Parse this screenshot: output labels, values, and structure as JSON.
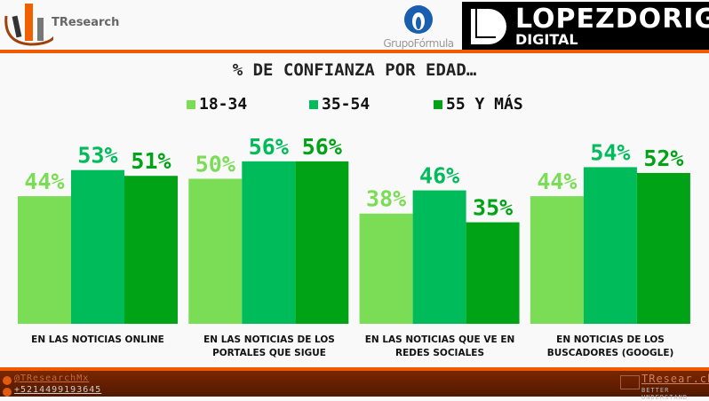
{
  "header": {
    "tresearch_logo": "TResearch",
    "grupo_formula_logo": "GrupoFórmula",
    "lopezdoriga_logo_line1": "LOPEZDORIGA",
    "lopezdoriga_logo_line2": "DIGITAL"
  },
  "footer": {
    "twitter": "@TResearchMx",
    "phone": "+5214499193645",
    "website": "TResear.ch",
    "tagline": "BETTER UNDERSTAND"
  },
  "colors": {
    "18-34": "#7bdc55",
    "35-54": "#00bb5a",
    "55 Y MÁS": "#00a316",
    "accent": "#f05a00"
  },
  "chart_data": {
    "type": "bar",
    "title": "% DE CONFIANZA POR EDAD…",
    "categories": [
      "EN LAS NOTICIAS ONLINE",
      "EN LAS NOTICIAS DE LOS PORTALES QUE SIGUE",
      "EN LAS NOTICIAS QUE VE EN REDES SOCIALES",
      "EN NOTICIAS DE LOS BUSCADORES (GOOGLE)"
    ],
    "series": [
      {
        "name": "18-34",
        "values": [
          44,
          50,
          38,
          44
        ]
      },
      {
        "name": "35-54",
        "values": [
          53,
          56,
          46,
          54
        ]
      },
      {
        "name": "55 Y MÁS",
        "values": [
          51,
          56,
          35,
          52
        ]
      }
    ],
    "value_suffix": "%",
    "legend": "top",
    "grid": false
  }
}
